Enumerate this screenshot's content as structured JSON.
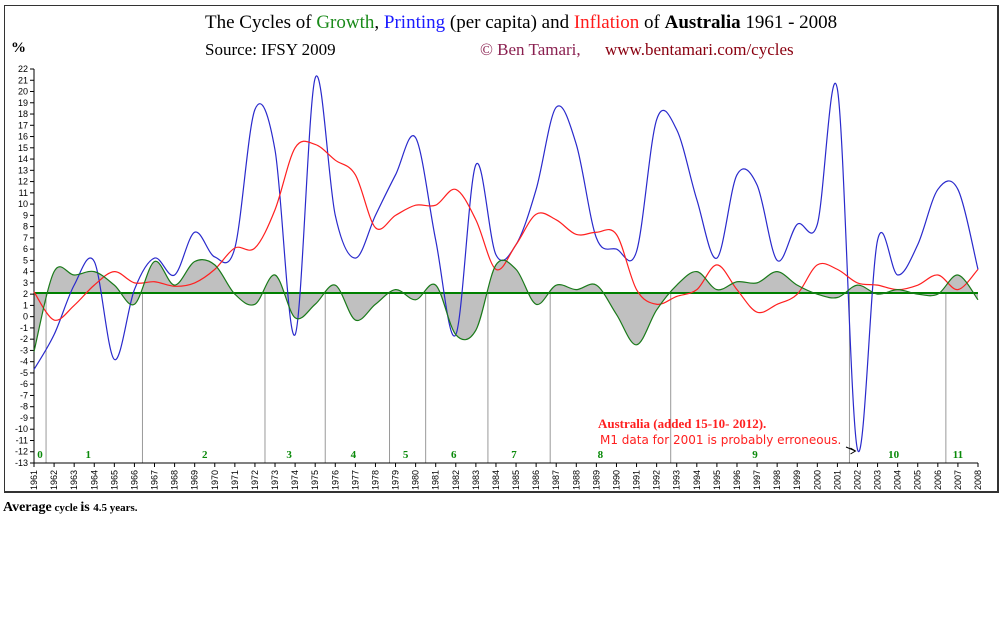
{
  "header": {
    "title_prefix": "The Cycles of ",
    "title_growth": "Growth",
    "title_sep": ", ",
    "title_printing": "Printing",
    "title_mid": " (per capita) and ",
    "title_inflation": "Inflation",
    "title_of": " of ",
    "title_country": "Australia",
    "title_years": " 1961 - 2008",
    "y_unit": "%",
    "source": "Source:  IFSY 2009",
    "copyright": "© Ben Tamari,",
    "url": "www.bentamari.com/cycles"
  },
  "footer": {
    "avg_a": "Average",
    "avg_b": " cycle ",
    "avg_c": "  is ",
    "avg_d": " 4.5 years."
  },
  "colors": {
    "growth": "#1a7a1a",
    "printing": "#2a2acc",
    "inflation": "#ff2020",
    "fill": "#c0c0c0",
    "average": "#008000",
    "cycle_label": "#0a8a0a"
  },
  "chart_data": {
    "type": "line",
    "title": "The Cycles of Growth, Printing (per capita) and Inflation of Australia 1961 - 2008",
    "ylabel": "%",
    "ylim": [
      -13,
      22
    ],
    "yticks": [
      22,
      21,
      20,
      19,
      18,
      17,
      16,
      15,
      14,
      13,
      12,
      11,
      10,
      9,
      8,
      7,
      6,
      5,
      4,
      3,
      2,
      1,
      0,
      -1,
      -2,
      -3,
      -4,
      -5,
      -6,
      -7,
      -8,
      -9,
      -10,
      -11,
      -12,
      -13
    ],
    "x": [
      1961,
      1962,
      1963,
      1964,
      1965,
      1966,
      1967,
      1968,
      1969,
      1970,
      1971,
      1972,
      1973,
      1974,
      1975,
      1976,
      1977,
      1978,
      1979,
      1980,
      1981,
      1982,
      1983,
      1984,
      1985,
      1986,
      1987,
      1988,
      1989,
      1990,
      1991,
      1992,
      1993,
      1994,
      1995,
      1996,
      1997,
      1998,
      1999,
      2000,
      2001,
      2002,
      2003,
      2004,
      2005,
      2006,
      2007,
      2008
    ],
    "xlim": [
      1961,
      2008
    ],
    "series": [
      {
        "name": "Printing",
        "values": [
          -4.7,
          -1.6,
          2.8,
          4.9,
          -3.8,
          2.4,
          5.2,
          3.7,
          7.5,
          5.3,
          6.1,
          18.4,
          14.8,
          -1.6,
          21.2,
          9,
          5.2,
          9,
          12.6,
          15.9,
          6.8,
          -1.6,
          13.5,
          5.5,
          6.4,
          11.3,
          18.6,
          15.3,
          7,
          6,
          5.8,
          17.5,
          16.6,
          10.4,
          5.2,
          12.6,
          11.7,
          5,
          8.2,
          8.2,
          20.2,
          -11.8,
          6.8,
          3.7,
          6.4,
          11.3,
          11.3,
          4.2
        ]
      },
      {
        "name": "Inflation",
        "values": [
          2.2,
          -0.3,
          1,
          2.8,
          4,
          3,
          3.1,
          2.7,
          3,
          4.2,
          6.1,
          6.1,
          9.5,
          15,
          15.3,
          13.9,
          12.6,
          7.9,
          9,
          9.9,
          9.9,
          11.3,
          8.6,
          4.2,
          6.4,
          9.1,
          8.6,
          7.3,
          7.5,
          7.3,
          2.4,
          1.1,
          1.8,
          2.4,
          4.6,
          2.4,
          0.4,
          1.1,
          2,
          4.6,
          4.2,
          3,
          2.8,
          2.4,
          2.8,
          3.7,
          2.4,
          4.2
        ]
      },
      {
        "name": "Growth",
        "values": [
          -3.1,
          4,
          3.7,
          4,
          2.8,
          1.1,
          4.9,
          2.8,
          4.9,
          4.6,
          2,
          1.1,
          3.7,
          -0.1,
          1.1,
          2.8,
          -0.3,
          1.1,
          2.4,
          1.5,
          2.8,
          -1.6,
          -1.2,
          4.6,
          4.2,
          1.1,
          2.8,
          2.4,
          2.8,
          0.2,
          -2.5,
          0.6,
          2.8,
          4,
          2.4,
          3.1,
          3,
          4,
          2.8,
          2,
          1.7,
          2.8,
          2,
          2.4,
          2,
          2,
          3.7,
          1.5
        ]
      }
    ],
    "average_growth": 2.1,
    "cycle_boundaries": [
      1961.6,
      1966.4,
      1972.5,
      1975.5,
      1978.7,
      1980.5,
      1983.6,
      1986.7,
      1992.7,
      2001.6,
      2006.4
    ],
    "cycle_labels": [
      {
        "label": "0",
        "year": 1961.3
      },
      {
        "label": "1",
        "year": 1963.7
      },
      {
        "label": "2",
        "year": 1969.5
      },
      {
        "label": "3",
        "year": 1973.7
      },
      {
        "label": "4",
        "year": 1976.9
      },
      {
        "label": "5",
        "year": 1979.5
      },
      {
        "label": "6",
        "year": 1981.9
      },
      {
        "label": "7",
        "year": 1984.9
      },
      {
        "label": "8",
        "year": 1989.2
      },
      {
        "label": "9",
        "year": 1996.9
      },
      {
        "label": "10",
        "year": 2003.8
      },
      {
        "label": "11",
        "year": 2007.0
      }
    ],
    "annotation": {
      "title": "Australia (added 15-10- 2012).",
      "note": "M1 data for 2001 is probably erroneous.",
      "arrow_year": 2002
    }
  }
}
